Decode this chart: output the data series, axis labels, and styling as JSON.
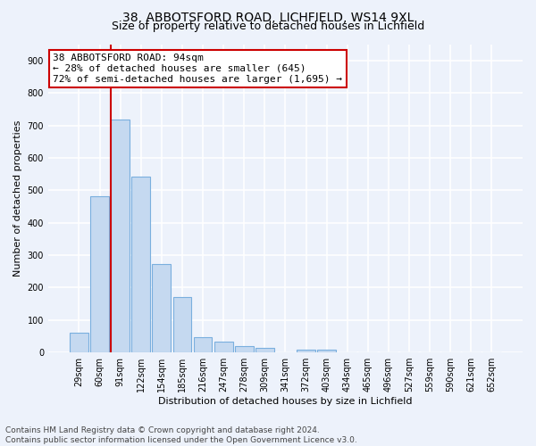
{
  "title1": "38, ABBOTSFORD ROAD, LICHFIELD, WS14 9XL",
  "title2": "Size of property relative to detached houses in Lichfield",
  "xlabel": "Distribution of detached houses by size in Lichfield",
  "ylabel": "Number of detached properties",
  "categories": [
    "29sqm",
    "60sqm",
    "91sqm",
    "122sqm",
    "154sqm",
    "185sqm",
    "216sqm",
    "247sqm",
    "278sqm",
    "309sqm",
    "341sqm",
    "372sqm",
    "403sqm",
    "434sqm",
    "465sqm",
    "496sqm",
    "527sqm",
    "559sqm",
    "590sqm",
    "621sqm",
    "652sqm"
  ],
  "values": [
    60,
    482,
    718,
    543,
    272,
    172,
    47,
    32,
    19,
    15,
    0,
    8,
    8,
    0,
    0,
    0,
    0,
    0,
    0,
    0,
    0
  ],
  "bar_color": "#c5d9f0",
  "bar_edge_color": "#7aafde",
  "property_line_color": "#cc0000",
  "annotation_text": "38 ABBOTSFORD ROAD: 94sqm\n← 28% of detached houses are smaller (645)\n72% of semi-detached houses are larger (1,695) →",
  "annotation_box_color": "#ffffff",
  "annotation_box_edge_color": "#cc0000",
  "ylim": [
    0,
    950
  ],
  "yticks": [
    0,
    100,
    200,
    300,
    400,
    500,
    600,
    700,
    800,
    900
  ],
  "footer": "Contains HM Land Registry data © Crown copyright and database right 2024.\nContains public sector information licensed under the Open Government Licence v3.0.",
  "background_color": "#edf2fb",
  "plot_bg_color": "#edf2fb",
  "grid_color": "#ffffff",
  "title1_fontsize": 10,
  "title2_fontsize": 9,
  "tick_fontsize": 7,
  "ylabel_fontsize": 8,
  "xlabel_fontsize": 8,
  "annotation_fontsize": 8,
  "footer_fontsize": 6.5,
  "property_line_bar_index": 2
}
